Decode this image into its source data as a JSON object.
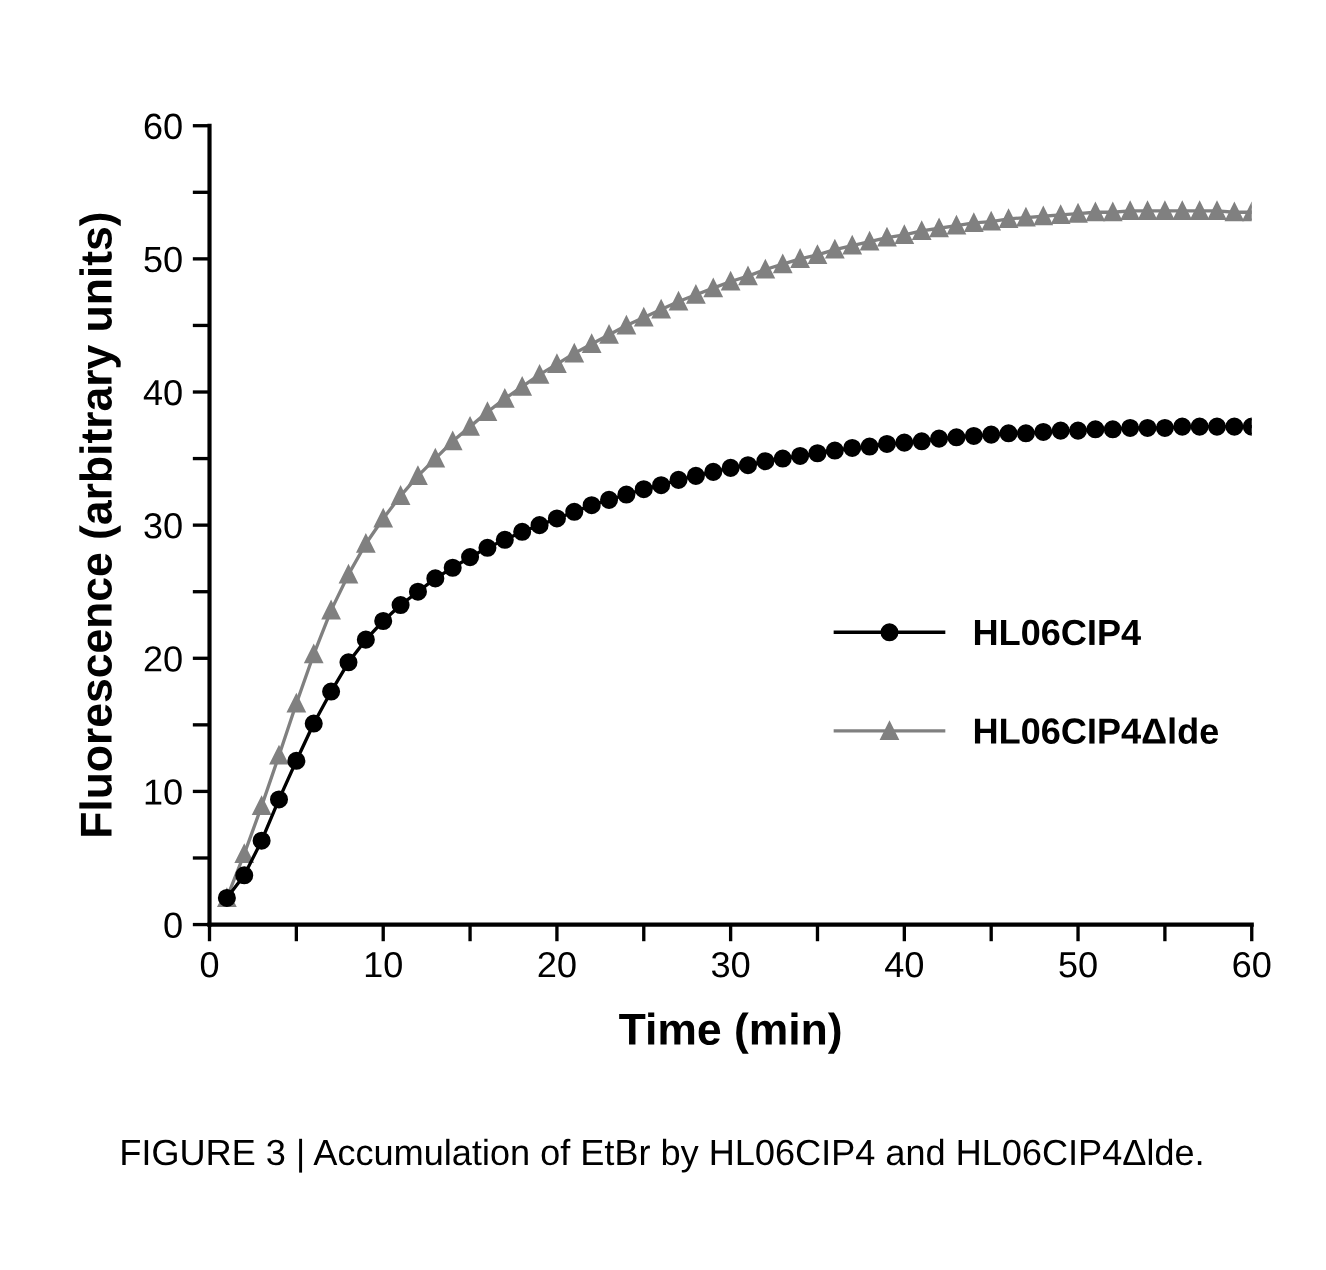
{
  "chart_data": {
    "type": "line",
    "xlabel": "Time (min)",
    "ylabel": "Fluorescence (arbitrary units)",
    "x": [
      1,
      2,
      3,
      4,
      5,
      6,
      7,
      8,
      9,
      10,
      11,
      12,
      13,
      14,
      15,
      16,
      17,
      18,
      19,
      20,
      21,
      22,
      23,
      24,
      25,
      26,
      27,
      28,
      29,
      30,
      31,
      32,
      33,
      34,
      35,
      36,
      37,
      38,
      39,
      40,
      41,
      42,
      43,
      44,
      45,
      46,
      47,
      48,
      49,
      50,
      51,
      52,
      53,
      54,
      55,
      56,
      57,
      58,
      59,
      60
    ],
    "series": [
      {
        "name": "HL06CIP4",
        "color": "#000000",
        "marker": "circle",
        "values": [
          2.0,
          3.7,
          6.3,
          9.4,
          12.3,
          15.1,
          17.5,
          19.7,
          21.4,
          22.8,
          24.0,
          25.0,
          26.0,
          26.8,
          27.6,
          28.3,
          28.9,
          29.5,
          30.0,
          30.5,
          31.0,
          31.5,
          31.9,
          32.3,
          32.7,
          33.0,
          33.4,
          33.7,
          34.0,
          34.3,
          34.5,
          34.8,
          35.0,
          35.2,
          35.4,
          35.6,
          35.8,
          35.9,
          36.1,
          36.2,
          36.3,
          36.5,
          36.6,
          36.7,
          36.8,
          36.9,
          36.9,
          37.0,
          37.1,
          37.1,
          37.2,
          37.2,
          37.3,
          37.3,
          37.3,
          37.4,
          37.4,
          37.4,
          37.4,
          37.4
        ]
      },
      {
        "name": "HL06CIP4Δlde",
        "color": "#808080",
        "marker": "triangle",
        "values": [
          2.0,
          5.3,
          8.9,
          12.7,
          16.6,
          20.3,
          23.6,
          26.3,
          28.6,
          30.5,
          32.2,
          33.7,
          35.0,
          36.3,
          37.4,
          38.5,
          39.5,
          40.4,
          41.3,
          42.1,
          42.9,
          43.6,
          44.3,
          45.0,
          45.6,
          46.2,
          46.8,
          47.3,
          47.8,
          48.3,
          48.7,
          49.2,
          49.6,
          50.0,
          50.3,
          50.7,
          51.0,
          51.3,
          51.6,
          51.8,
          52.1,
          52.3,
          52.5,
          52.7,
          52.8,
          53.0,
          53.1,
          53.2,
          53.3,
          53.4,
          53.5,
          53.5,
          53.6,
          53.6,
          53.6,
          53.6,
          53.6,
          53.6,
          53.5,
          53.5
        ]
      }
    ],
    "xlim": [
      0,
      60
    ],
    "ylim": [
      0,
      60
    ],
    "xticks": [
      0,
      {
        "value": 5,
        "label": null
      },
      10,
      {
        "value": 15,
        "label": null
      },
      20,
      {
        "value": 25,
        "label": null
      },
      30,
      {
        "value": 35,
        "label": null
      },
      40,
      {
        "value": 45,
        "label": null
      },
      50,
      {
        "value": 55,
        "label": null
      },
      60
    ],
    "yticks": [
      0,
      {
        "value": 5,
        "label": null
      },
      10,
      {
        "value": 15,
        "label": null
      },
      20,
      {
        "value": 25,
        "label": null
      },
      30,
      {
        "value": 35,
        "label": null
      },
      40,
      {
        "value": 45,
        "label": null
      },
      50,
      {
        "value": 55,
        "label": null
      },
      60
    ],
    "grid": false,
    "legend": "bottom right",
    "line_style": "solid",
    "annotations": [
      "FIGURE 3 | Accumulation of EtBr by HL06CIP4 and HL06CIP4Δlde."
    ]
  }
}
